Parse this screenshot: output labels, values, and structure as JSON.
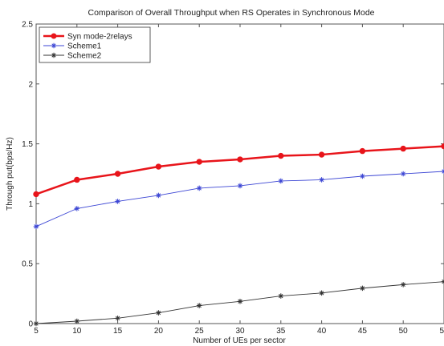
{
  "chart_data": {
    "type": "line",
    "title": "Comparison of Overall Throughput when RS Operates in Synchronous Mode",
    "xlabel": "Number of UEs per sector",
    "ylabel": "Through put(bps/Hz)",
    "xlim": [
      5,
      55
    ],
    "ylim": [
      0,
      2.5
    ],
    "xticks": [
      5,
      10,
      15,
      20,
      25,
      30,
      35,
      40,
      45,
      50,
      55
    ],
    "xtick_labels": [
      "5",
      "10",
      "15",
      "20",
      "25",
      "30",
      "35",
      "40",
      "45",
      "50",
      "55"
    ],
    "yticks": [
      0,
      0.5,
      1,
      1.5,
      2,
      2.5
    ],
    "ytick_labels": [
      "0",
      "0.5",
      "1",
      "1.5",
      "2",
      "2.5"
    ],
    "grid": false,
    "legend_position": "top-left",
    "x": [
      5,
      10,
      15,
      20,
      25,
      30,
      35,
      40,
      45,
      50,
      55
    ],
    "series": [
      {
        "name": "Syn mode-2relays",
        "color": "#e8141a",
        "marker": "dot",
        "values": [
          1.08,
          1.2,
          1.25,
          1.31,
          1.35,
          1.37,
          1.4,
          1.41,
          1.44,
          1.46,
          1.48
        ]
      },
      {
        "name": "Scheme1",
        "color": "#3b45d4",
        "marker": "asterisk",
        "values": [
          0.81,
          0.96,
          1.02,
          1.07,
          1.13,
          1.15,
          1.19,
          1.2,
          1.23,
          1.25,
          1.27
        ]
      },
      {
        "name": "Scheme2",
        "color": "#333333",
        "marker": "asterisk",
        "values": [
          0.0,
          0.02,
          0.045,
          0.09,
          0.15,
          0.185,
          0.23,
          0.255,
          0.295,
          0.325,
          0.35
        ]
      }
    ]
  }
}
